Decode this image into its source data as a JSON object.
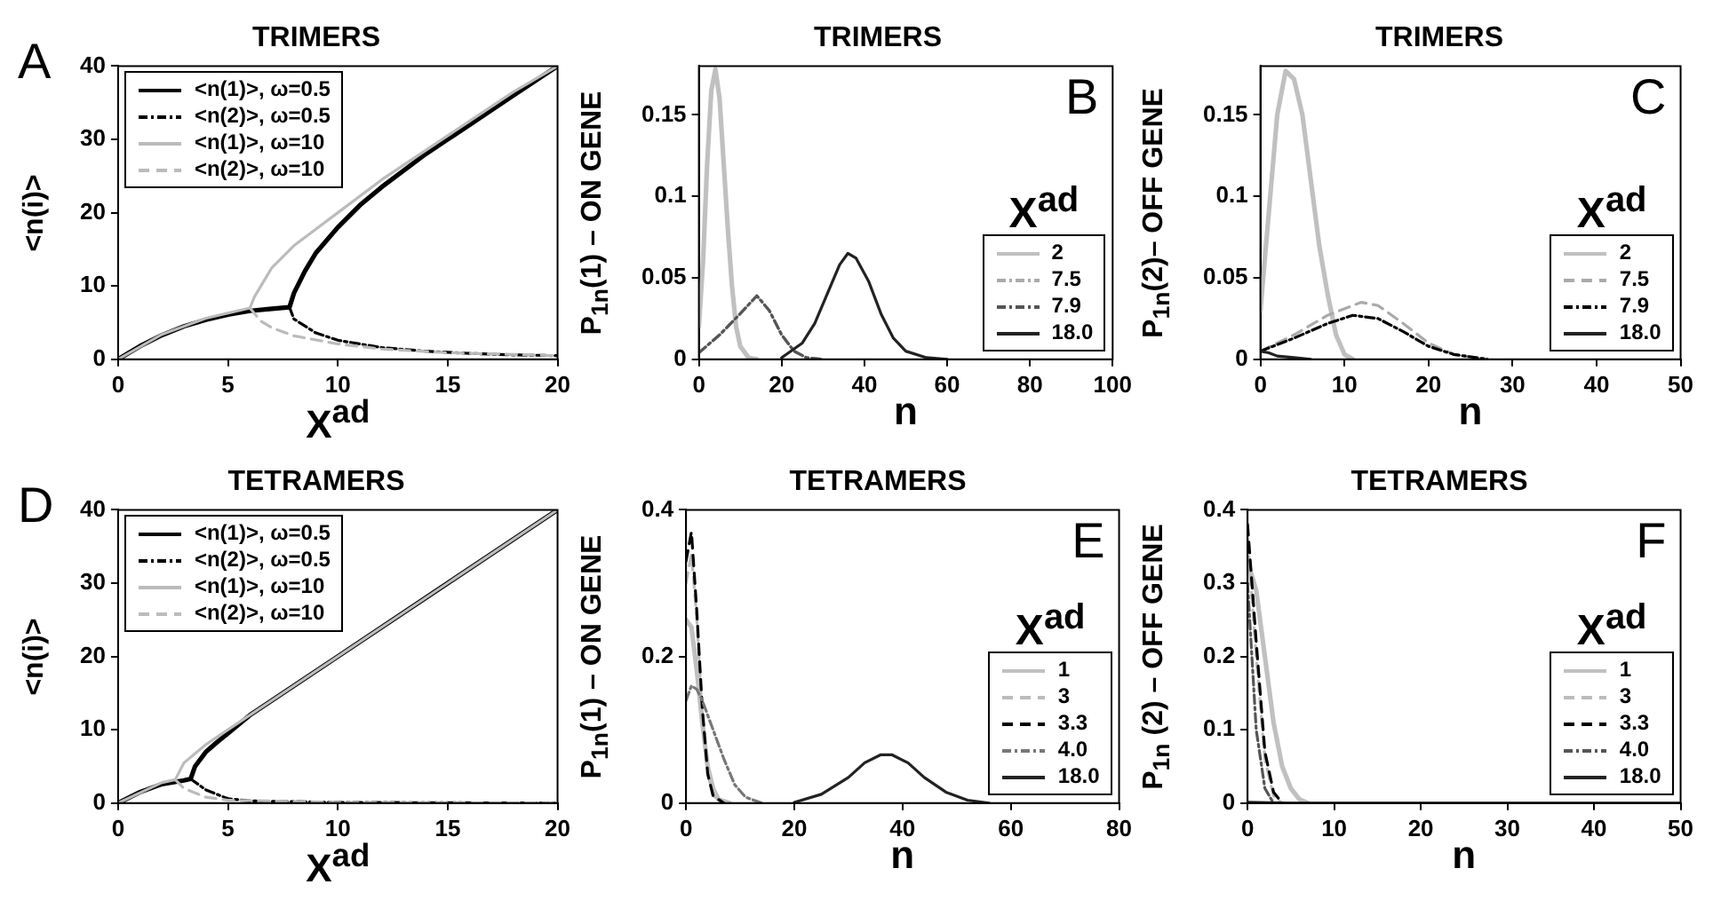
{
  "chart_data": [
    {
      "type": "line",
      "title": "TRIMERS",
      "xlabel": "X$^{ad}$",
      "ylabel": "<n(i)>",
      "annotations": [
        "A"
      ],
      "xlim": [
        0,
        20
      ],
      "ylim": [
        0,
        40
      ],
      "xticks": [
        0,
        5,
        10,
        15,
        20
      ],
      "yticks": [
        0,
        10,
        20,
        30,
        40
      ],
      "legend": "top left",
      "series": [
        {
          "name": "<n(1)>, ω=0.5",
          "color": "#000000",
          "line_style": "solid",
          "x": [
            0,
            1,
            2,
            3,
            4,
            5,
            6,
            7,
            7.8,
            8,
            8.5,
            9,
            10,
            11,
            12,
            14,
            16,
            18,
            20
          ],
          "values": [
            0,
            1.8,
            3.3,
            4.5,
            5.4,
            6.1,
            6.6,
            6.9,
            7.1,
            9,
            12,
            14.5,
            18,
            21,
            23.5,
            28,
            32,
            36,
            40
          ]
        },
        {
          "name": "<n(2)>, ω=0.5",
          "color": "#000000",
          "line_style": "dotted",
          "x": [
            7.8,
            8,
            9,
            10,
            12,
            14,
            16,
            18,
            20
          ],
          "values": [
            7.1,
            5.5,
            3.6,
            2.6,
            1.6,
            1.1,
            0.8,
            0.6,
            0.5
          ]
        },
        {
          "name": "<n(1)>, ω=10",
          "color": "#bbbbbb",
          "line_style": "solid",
          "x": [
            0,
            2,
            4,
            6,
            6.2,
            7,
            8,
            10,
            12,
            14,
            16,
            18,
            20
          ],
          "values": [
            0,
            3.4,
            5.6,
            7,
            8.5,
            12.5,
            15.5,
            20,
            24.5,
            28.5,
            32.5,
            36.5,
            40
          ]
        },
        {
          "name": "<n(2)>, ω=10",
          "color": "#bbbbbb",
          "line_style": "dashed",
          "x": [
            6,
            6.5,
            7,
            8,
            10,
            12,
            15,
            20
          ],
          "values": [
            7,
            5.2,
            4.3,
            3.2,
            2.1,
            1.4,
            0.9,
            0.5
          ]
        }
      ]
    },
    {
      "type": "line",
      "title": "TRIMERS",
      "xlabel": "n",
      "ylabel": "P$_{1n}$(1) – ON GENE",
      "annotations": [
        "B"
      ],
      "legend_title": "X$^{ad}$",
      "xlim": [
        0,
        100
      ],
      "ylim": [
        0,
        0.18
      ],
      "xticks": [
        0,
        20,
        40,
        60,
        80,
        100
      ],
      "yticks": [
        0,
        0.05,
        0.1,
        0.15
      ],
      "legend": "bottom right",
      "series": [
        {
          "name": "2",
          "color": "#c0c0c0",
          "line_style": "solid",
          "x": [
            0,
            1,
            2,
            3,
            4,
            5,
            6,
            7,
            8,
            9,
            10,
            12,
            14
          ],
          "values": [
            0.02,
            0.06,
            0.12,
            0.165,
            0.178,
            0.16,
            0.12,
            0.08,
            0.045,
            0.02,
            0.008,
            0.001,
            0
          ]
        },
        {
          "name": "7.5",
          "color": "#aaaaaa",
          "line_style": "dotted",
          "x": [
            0,
            5,
            10,
            14,
            17,
            20,
            23,
            26,
            30
          ],
          "values": [
            0.004,
            0.015,
            0.028,
            0.039,
            0.03,
            0.015,
            0.005,
            0.001,
            0
          ]
        },
        {
          "name": "7.9",
          "color": "#555555",
          "line_style": "dotted",
          "x": [
            0,
            5,
            10,
            14,
            17,
            20,
            23,
            26,
            30
          ],
          "values": [
            0.004,
            0.015,
            0.028,
            0.039,
            0.03,
            0.015,
            0.005,
            0.001,
            0
          ]
        },
        {
          "name": "18.0",
          "color": "#222222",
          "line_style": "solid",
          "x": [
            20,
            25,
            28,
            31,
            34,
            36,
            38,
            41,
            44,
            47,
            50,
            55,
            60
          ],
          "values": [
            0.001,
            0.01,
            0.022,
            0.04,
            0.058,
            0.065,
            0.062,
            0.048,
            0.028,
            0.013,
            0.005,
            0.001,
            0
          ]
        }
      ]
    },
    {
      "type": "line",
      "title": "TRIMERS",
      "xlabel": "n",
      "ylabel": "P$_{1n}$(2)– OFF GENE",
      "annotations": [
        "C"
      ],
      "legend_title": "X$^{ad}$",
      "xlim": [
        0,
        50
      ],
      "ylim": [
        0,
        0.18
      ],
      "xticks": [
        0,
        10,
        20,
        30,
        40,
        50
      ],
      "yticks": [
        0,
        0.05,
        0.1,
        0.15
      ],
      "legend": "bottom right",
      "series": [
        {
          "name": "2",
          "color": "#c0c0c0",
          "line_style": "solid",
          "x": [
            0,
            1,
            2,
            3,
            4,
            5,
            6,
            7,
            8,
            9,
            10,
            11
          ],
          "values": [
            0.03,
            0.09,
            0.15,
            0.177,
            0.172,
            0.15,
            0.11,
            0.07,
            0.04,
            0.015,
            0.003,
            0
          ]
        },
        {
          "name": "7.5",
          "color": "#aaaaaa",
          "line_style": "dashed",
          "x": [
            0,
            4,
            8,
            12,
            14,
            17,
            20,
            23,
            27
          ],
          "values": [
            0.005,
            0.015,
            0.027,
            0.035,
            0.033,
            0.022,
            0.01,
            0.003,
            0
          ]
        },
        {
          "name": "7.9",
          "color": "#000000",
          "line_style": "dotted",
          "x": [
            0,
            4,
            8,
            11,
            14,
            17,
            20,
            23,
            27
          ],
          "values": [
            0.005,
            0.013,
            0.022,
            0.027,
            0.025,
            0.017,
            0.008,
            0.003,
            0
          ]
        },
        {
          "name": "18.0",
          "color": "#222222",
          "line_style": "solid",
          "x": [
            0,
            1,
            2,
            4,
            6
          ],
          "values": [
            0.005,
            0.004,
            0.002,
            0.001,
            0
          ]
        }
      ]
    },
    {
      "type": "line",
      "title": "TETRAMERS",
      "xlabel": "X$^{ad}$",
      "ylabel": "<n(i)>",
      "annotations": [
        "D"
      ],
      "xlim": [
        0,
        20
      ],
      "ylim": [
        0,
        40
      ],
      "xticks": [
        0,
        5,
        10,
        15,
        20
      ],
      "yticks": [
        0,
        10,
        20,
        30,
        40
      ],
      "legend": "top left",
      "series": [
        {
          "name": "<n(1)>, ω=0.5",
          "color": "#000000",
          "line_style": "solid",
          "x": [
            0,
            1,
            2,
            3,
            3.3,
            3.5,
            4,
            4.5,
            5,
            6,
            10,
            15,
            20
          ],
          "values": [
            0,
            1.5,
            2.6,
            3.1,
            3.3,
            5,
            7,
            8.3,
            9.5,
            12,
            20,
            30,
            40
          ]
        },
        {
          "name": "<n(2)>, ω=0.5",
          "color": "#000000",
          "line_style": "dotted",
          "x": [
            3.3,
            4,
            5,
            6,
            10,
            20
          ],
          "values": [
            3.3,
            1.8,
            0.6,
            0.3,
            0.1,
            0
          ]
        },
        {
          "name": "<n(1)>, ω=10",
          "color": "#bbbbbb",
          "line_style": "solid",
          "x": [
            0,
            2,
            2.6,
            3,
            4,
            5,
            10,
            15,
            20
          ],
          "values": [
            0,
            2.8,
            3.2,
            5.5,
            8,
            10,
            20,
            30,
            40
          ]
        },
        {
          "name": "<n(2)>, ω=10",
          "color": "#bbbbbb",
          "line_style": "dashed",
          "x": [
            2.6,
            3,
            4,
            5,
            10,
            20
          ],
          "values": [
            3.2,
            2,
            0.8,
            0.4,
            0.1,
            0
          ]
        }
      ]
    },
    {
      "type": "line",
      "title": "TETRAMERS",
      "xlabel": "n",
      "ylabel": "P$_{1n}$(1) – ON GENE",
      "annotations": [
        "E"
      ],
      "legend_title": "X$^{ad}$",
      "xlim": [
        0,
        80
      ],
      "ylim": [
        0,
        0.4
      ],
      "xticks": [
        0,
        20,
        40,
        60,
        80
      ],
      "yticks": [
        0,
        0.2,
        0.4
      ],
      "legend": "bottom right",
      "series": [
        {
          "name": "1",
          "color": "#c0c0c0",
          "line_style": "solid",
          "x": [
            0,
            1,
            2,
            3,
            4,
            5,
            6,
            8
          ],
          "values": [
            0.25,
            0.24,
            0.18,
            0.11,
            0.05,
            0.02,
            0.005,
            0
          ]
        },
        {
          "name": "3",
          "color": "#bbbbbb",
          "line_style": "dashed",
          "x": [
            0,
            1,
            2,
            3,
            4,
            5,
            7
          ],
          "values": [
            0.3,
            0.34,
            0.25,
            0.12,
            0.04,
            0.01,
            0
          ]
        },
        {
          "name": "3.3",
          "color": "#000000",
          "line_style": "dashed",
          "x": [
            0,
            1,
            2,
            3,
            4,
            5,
            7
          ],
          "values": [
            0.33,
            0.37,
            0.26,
            0.13,
            0.04,
            0.01,
            0
          ]
        },
        {
          "name": "4.0",
          "color": "#777777",
          "line_style": "dotted",
          "x": [
            0,
            1,
            2,
            3,
            5,
            7,
            9,
            11,
            14
          ],
          "values": [
            0.14,
            0.16,
            0.155,
            0.14,
            0.1,
            0.06,
            0.025,
            0.008,
            0
          ]
        },
        {
          "name": "18.0",
          "color": "#222222",
          "line_style": "solid",
          "x": [
            20,
            25,
            30,
            33,
            36,
            38,
            41,
            44,
            48,
            52,
            56
          ],
          "values": [
            0.001,
            0.012,
            0.035,
            0.055,
            0.066,
            0.066,
            0.055,
            0.035,
            0.015,
            0.004,
            0
          ]
        }
      ]
    },
    {
      "type": "line",
      "title": "TETRAMERS",
      "xlabel": "n",
      "ylabel": "P$_{1n}$ (2) – OFF GENE",
      "annotations": [
        "F"
      ],
      "legend_title": "X$^{ad}$",
      "xlim": [
        0,
        50
      ],
      "ylim": [
        0,
        0.4
      ],
      "xticks": [
        0,
        10,
        20,
        30,
        40,
        50
      ],
      "yticks": [
        0,
        0.1,
        0.2,
        0.3,
        0.4
      ],
      "legend": "bottom right",
      "series": [
        {
          "name": "1",
          "color": "#c0c0c0",
          "line_style": "solid",
          "x": [
            0,
            1,
            2,
            3,
            4,
            5,
            6,
            7
          ],
          "values": [
            0.33,
            0.29,
            0.2,
            0.11,
            0.05,
            0.02,
            0.005,
            0
          ]
        },
        {
          "name": "3",
          "color": "#bbbbbb",
          "line_style": "dashed",
          "x": [
            0,
            1,
            2,
            3,
            4
          ],
          "values": [
            0.36,
            0.2,
            0.06,
            0.01,
            0
          ]
        },
        {
          "name": "3.3",
          "color": "#000000",
          "line_style": "dashed",
          "x": [
            0,
            1,
            2,
            3,
            4
          ],
          "values": [
            0.38,
            0.22,
            0.07,
            0.015,
            0
          ]
        },
        {
          "name": "4.0",
          "color": "#555555",
          "line_style": "dotted",
          "x": [
            0,
            1,
            2,
            3
          ],
          "values": [
            0.3,
            0.1,
            0.02,
            0
          ]
        },
        {
          "name": "18.0",
          "color": "#222222",
          "line_style": "solid",
          "x": [
            0,
            5,
            50
          ],
          "values": [
            0.001,
            0,
            0
          ]
        }
      ]
    }
  ]
}
